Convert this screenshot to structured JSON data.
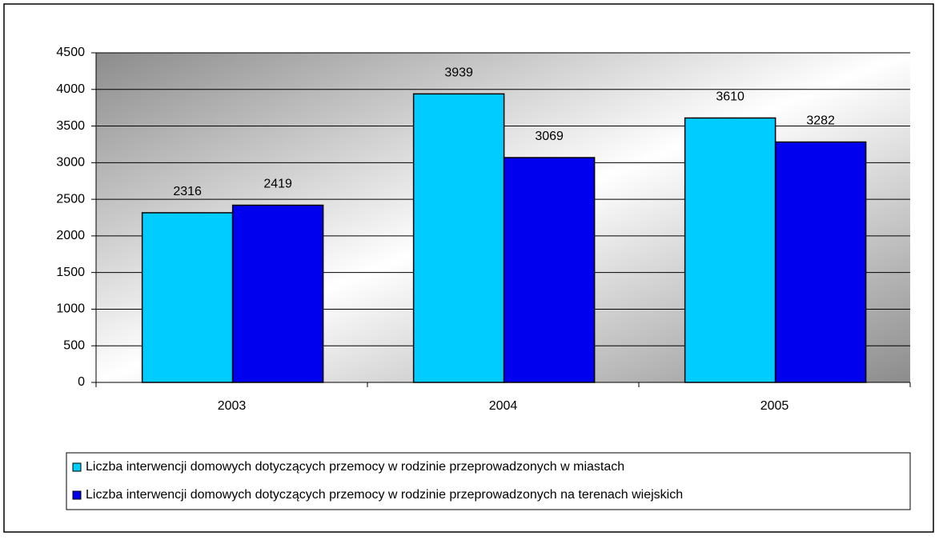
{
  "chart_data": {
    "type": "bar",
    "categories": [
      "2003",
      "2004",
      "2005"
    ],
    "series": [
      {
        "name": "Liczba interwencji domowych dotyczących przemocy w rodzinie przeprowadzonych w miastach",
        "color": "#00ccff",
        "values": [
          2316,
          3939,
          3610
        ]
      },
      {
        "name": "Liczba interwencji domowych dotyczących przemocy w rodzinie przeprowadzonych na terenach wiejskich",
        "color": "#0000ee",
        "values": [
          2419,
          3069,
          3282
        ]
      }
    ],
    "ylim": [
      0,
      4500
    ],
    "yticks": [
      0,
      500,
      1000,
      1500,
      2000,
      2500,
      3000,
      3500,
      4000,
      4500
    ],
    "grid": true,
    "legend": "bottom"
  }
}
